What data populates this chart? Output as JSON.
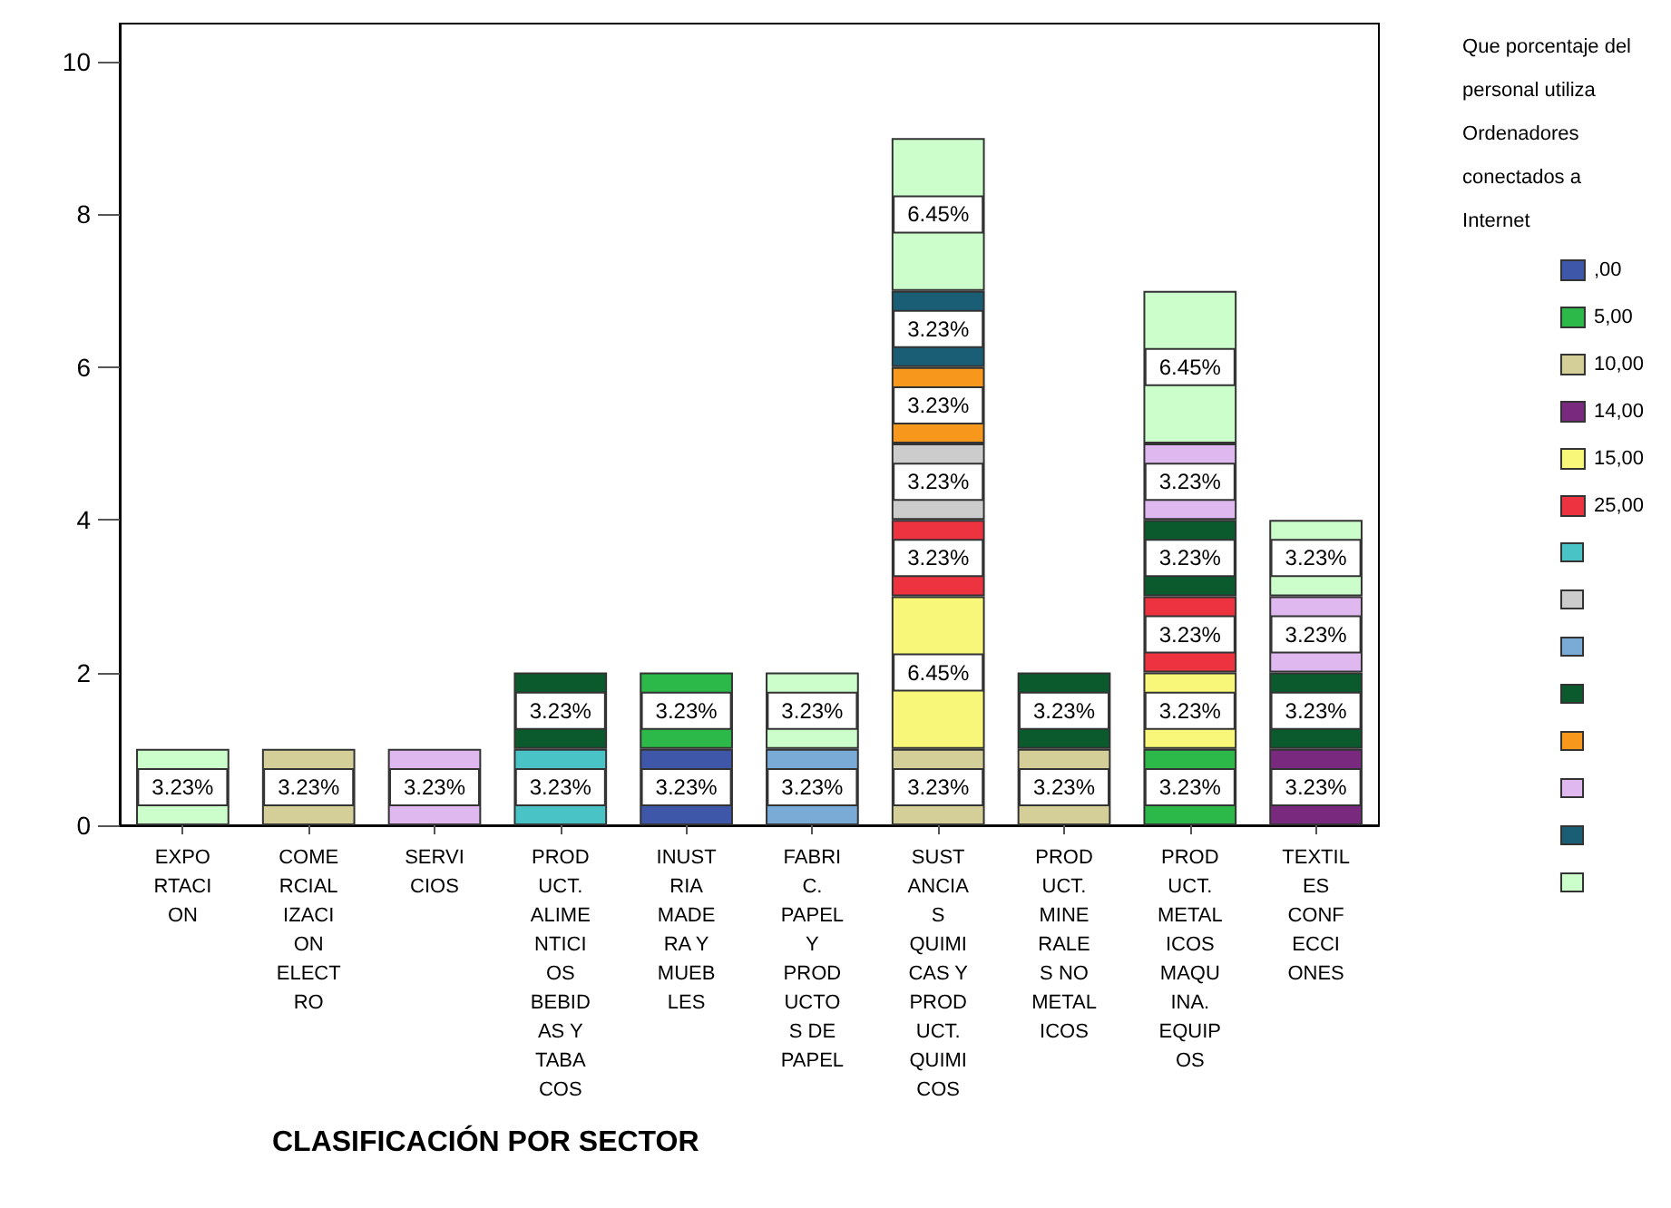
{
  "chart_data": {
    "type": "bar",
    "stacked": true,
    "xlabel": "CLASIFICACIÓN POR SECTOR",
    "legend_title": "Que porcentaje del\npersonal utiliza\nOrdenadores\nconectados a\nInternet",
    "legend": "right",
    "grid": false,
    "categories": [
      "EXPO\nRTACI\nON",
      "COME\nRCIAL\nIZACI\nON\nELECT\nRO",
      "SERVI\nCIOS",
      "PROD\nUCT.\nALIME\nNTICI\nOS\nBEBID\nAS Y\nTABA\nCOS",
      "INUST\nRIA\nMADE\nRA Y\nMUEB\nLES",
      "FABRI\nC.\nPAPEL\nY\nPROD\nUCTO\nS DE\nPAPEL",
      "SUST\nANCIA\nS\nQUIMI\nCAS Y\nPROD\nUCT.\nQUIMI\nCOS",
      "PROD\nUCT.\nMINE\nRALE\nS NO\nMETAL\nICOS",
      "PROD\nUCT.\nMETAL\nICOS\nMAQU\nINA.\nEQUIP\nOS",
      "TEXTIL\nES\nCONF\nECCI\nONES"
    ],
    "ylim": [
      0,
      10.5
    ],
    "yticks": [
      0,
      2,
      4,
      6,
      8,
      10
    ],
    "series": [
      {
        "name": ",00",
        "color": "#3f57a8",
        "values": [
          null,
          null,
          null,
          null,
          1,
          null,
          null,
          null,
          null,
          null
        ]
      },
      {
        "name": "5,00",
        "color": "#2db84a",
        "values": [
          null,
          null,
          null,
          null,
          1,
          null,
          null,
          null,
          1,
          null
        ]
      },
      {
        "name": "10,00",
        "color": "#d4cf98",
        "values": [
          null,
          1,
          null,
          null,
          null,
          null,
          1,
          1,
          null,
          null
        ]
      },
      {
        "name": "14,00",
        "color": "#7a2a7e",
        "values": [
          null,
          null,
          null,
          null,
          null,
          null,
          null,
          null,
          null,
          1
        ]
      },
      {
        "name": "15,00",
        "color": "#f8f77a",
        "values": [
          null,
          null,
          null,
          null,
          null,
          null,
          2,
          null,
          1,
          null
        ]
      },
      {
        "name": "25,00",
        "color": "#ee3340",
        "values": [
          null,
          null,
          null,
          null,
          null,
          null,
          1,
          null,
          1,
          null
        ]
      },
      {
        "color": "#4ac3c6",
        "values": [
          null,
          null,
          null,
          1,
          null,
          null,
          null,
          null,
          null,
          null
        ]
      },
      {
        "color": "#cccccc",
        "values": [
          null,
          null,
          null,
          null,
          null,
          null,
          1,
          null,
          null,
          null
        ]
      },
      {
        "color": "#7aaad6",
        "values": [
          null,
          null,
          null,
          null,
          null,
          1,
          null,
          null,
          null,
          null
        ]
      },
      {
        "color": "#0a5a2e",
        "values": [
          null,
          null,
          null,
          1,
          null,
          null,
          null,
          1,
          1,
          1
        ]
      },
      {
        "color": "#f7981d",
        "values": [
          null,
          null,
          null,
          null,
          null,
          null,
          1,
          null,
          null,
          null
        ]
      },
      {
        "color": "#dfb8ef",
        "values": [
          null,
          null,
          1,
          null,
          null,
          null,
          null,
          null,
          1,
          1
        ]
      },
      {
        "color": "#1a5e75",
        "values": [
          null,
          null,
          null,
          null,
          null,
          null,
          1,
          null,
          null,
          null
        ]
      },
      {
        "color": "#ccfecc",
        "values": [
          1,
          null,
          null,
          null,
          null,
          1,
          2,
          null,
          2,
          1
        ]
      }
    ],
    "annotations": [
      "3.23%",
      "3.23%",
      "3.23%",
      "3.23%",
      "3.23%",
      "3.23%",
      "3.23%",
      "3.23%",
      "3.23%",
      "3.23%",
      "6.45%",
      "3.23%",
      "3.23%",
      "3.23%",
      "3.23%",
      "6.45%",
      "3.23%",
      "3.23%",
      "3.23%",
      "3.23%",
      "3.23%",
      "3.23%",
      "3.23%",
      "6.45%",
      "3.23%",
      "3.23%",
      "3.23%",
      "3.23%"
    ]
  }
}
